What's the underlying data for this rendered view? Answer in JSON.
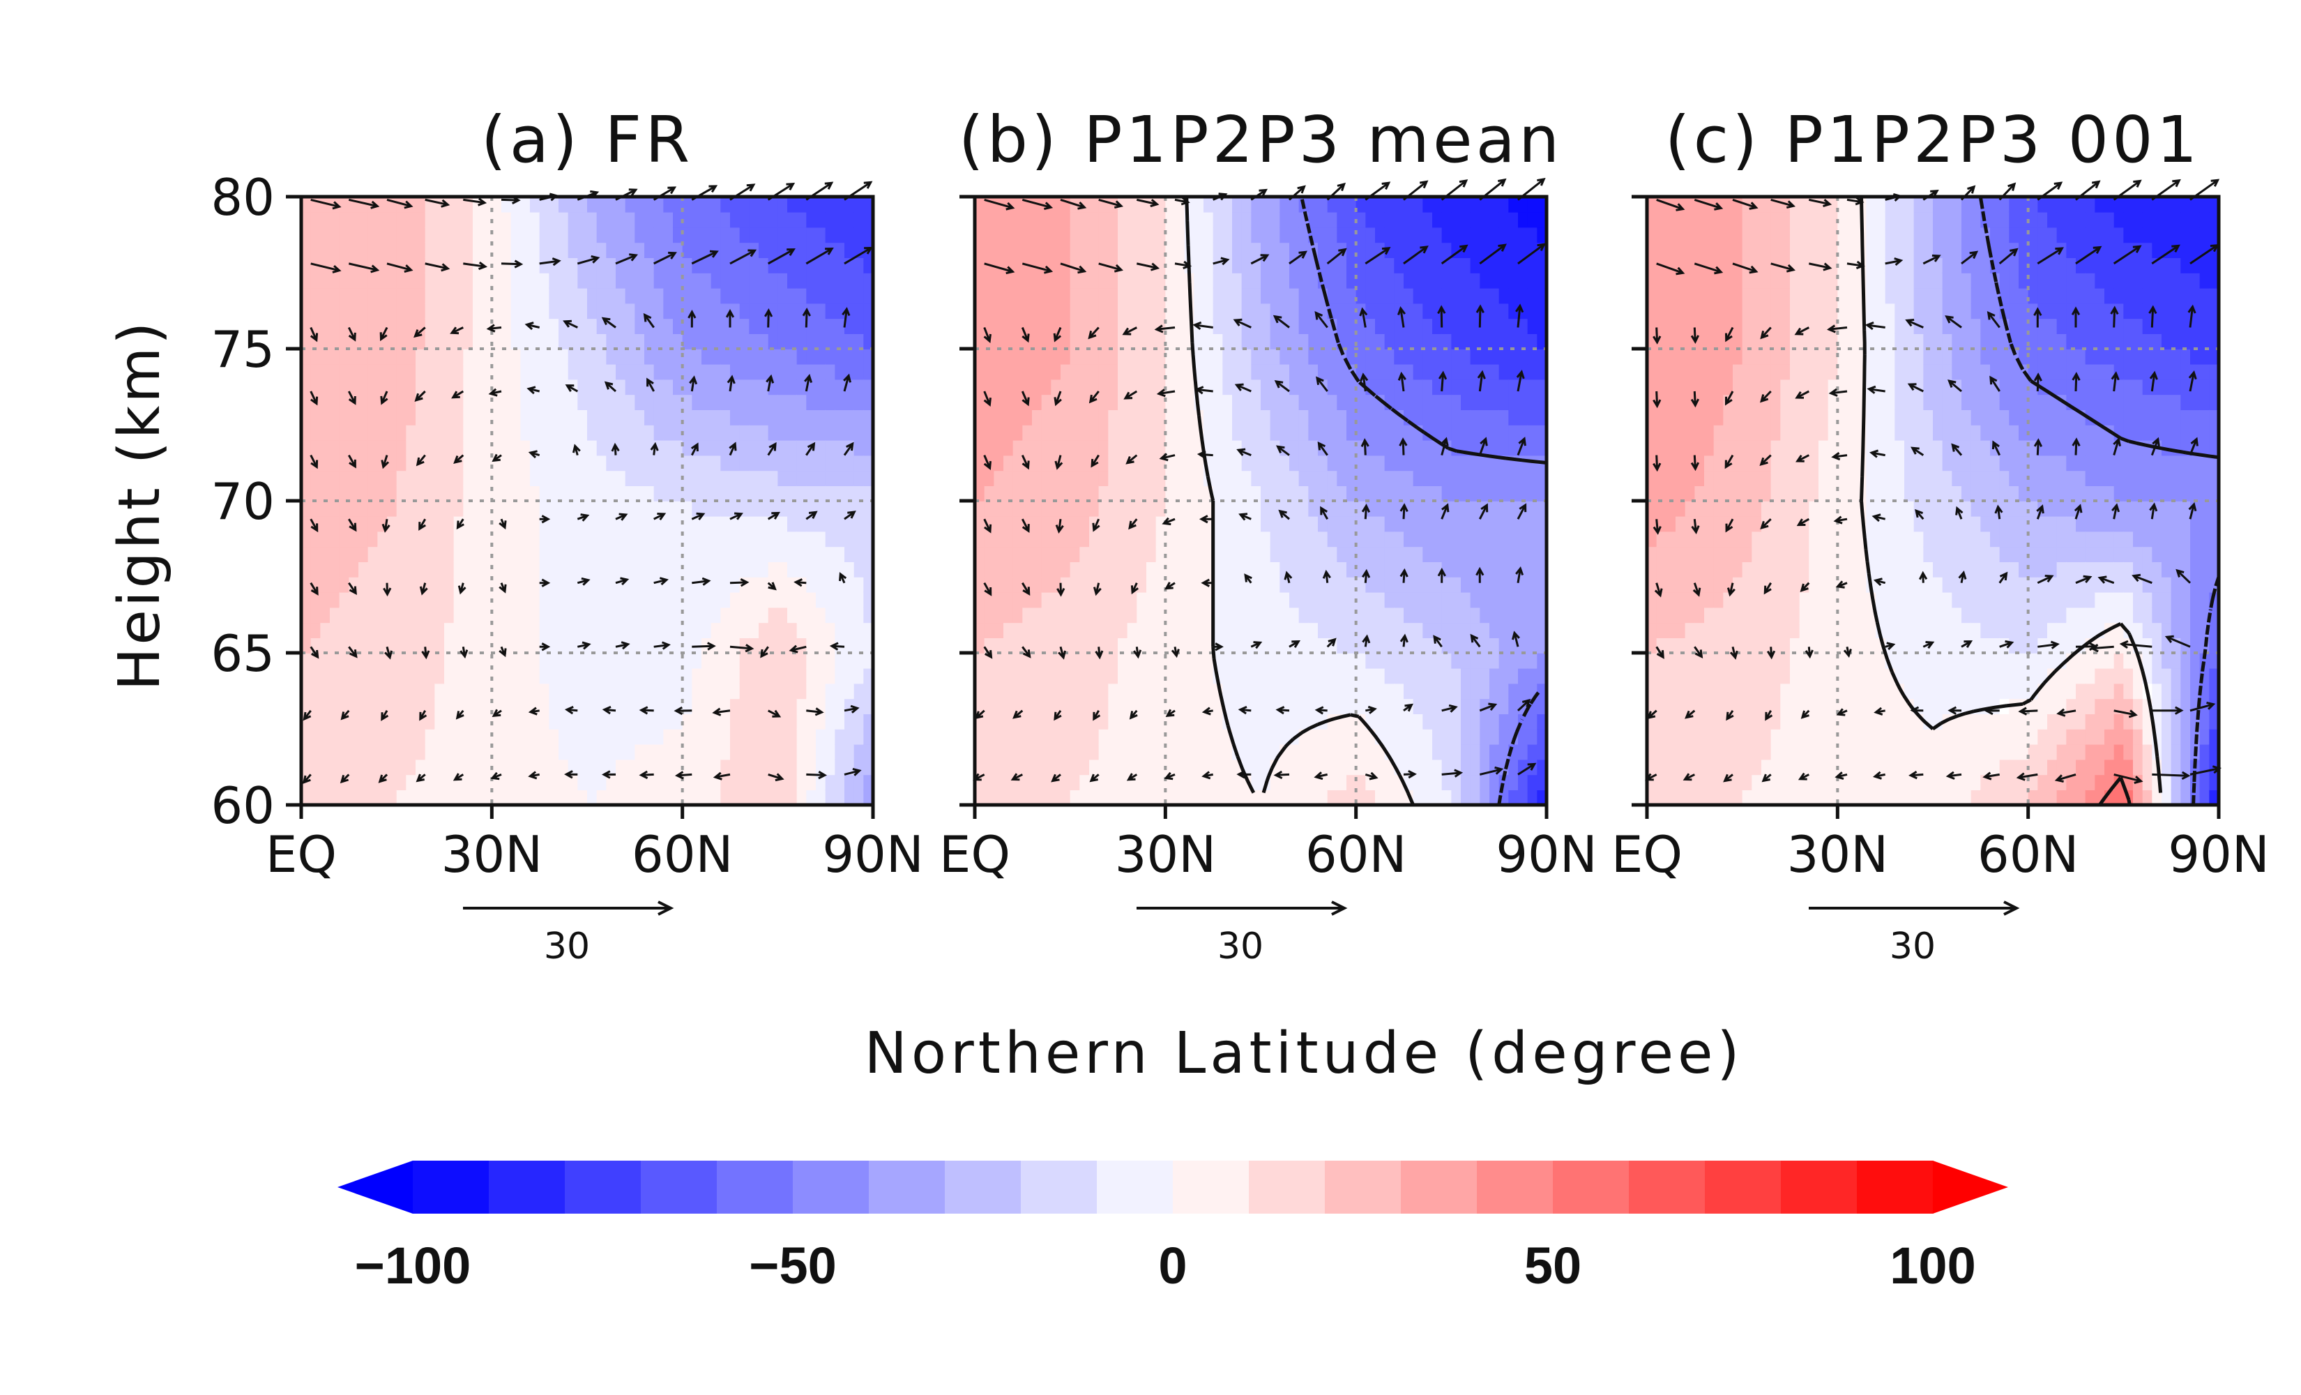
{
  "chart_data": {
    "type": "heatmap",
    "xlabel": "Northern Latitude (degree)",
    "ylabel": "Height (km)",
    "xlim": [
      0,
      90
    ],
    "ylim": [
      60,
      80
    ],
    "x_ticks": [
      {
        "value": 0,
        "label": "EQ"
      },
      {
        "value": 30,
        "label": "30N"
      },
      {
        "value": 60,
        "label": "60N"
      },
      {
        "value": 90,
        "label": "90N"
      }
    ],
    "y_ticks": [
      60,
      65,
      70,
      75,
      80
    ],
    "grid": true,
    "reference_vector": {
      "label": "30"
    },
    "colorbar": {
      "min": -100,
      "max": 100,
      "step": 10,
      "tick_values": [
        -100,
        -50,
        0,
        50,
        100
      ],
      "tick_labels": [
        "−100",
        "−50",
        "0",
        "50",
        "100"
      ],
      "extend": "both",
      "low_color": "#0000ff",
      "high_color": "#ff0000",
      "mid_color": "#ffffff"
    },
    "panels": [
      {
        "title": "(a) FR",
        "field_latitudes": [
          0,
          15,
          30,
          45,
          60,
          75,
          90
        ],
        "field_heights": [
          60,
          65,
          70,
          75,
          80
        ],
        "field_values": [
          [
            15,
            10,
            5,
            0,
            5,
            20,
            -40
          ],
          [
            20,
            15,
            5,
            -5,
            -5,
            20,
            -10
          ],
          [
            25,
            20,
            5,
            -5,
            -10,
            -15,
            -15
          ],
          [
            30,
            25,
            5,
            -15,
            -40,
            -50,
            -60
          ],
          [
            30,
            25,
            5,
            -30,
            -55,
            -70,
            -80
          ]
        ],
        "contours": false
      },
      {
        "title": "(b) P1P2P3 mean",
        "field_latitudes": [
          0,
          15,
          30,
          45,
          60,
          75,
          90
        ],
        "field_heights": [
          60,
          65,
          70,
          75,
          80
        ],
        "field_values": [
          [
            10,
            10,
            5,
            0,
            15,
            -10,
            -90
          ],
          [
            20,
            15,
            5,
            -5,
            -10,
            -20,
            -40
          ],
          [
            30,
            25,
            10,
            -10,
            -30,
            -40,
            -40
          ],
          [
            35,
            30,
            10,
            -25,
            -55,
            -70,
            -80
          ],
          [
            35,
            30,
            10,
            -35,
            -70,
            -85,
            -95
          ]
        ],
        "contours": true
      },
      {
        "title": "(c) P1P2P3 001",
        "field_latitudes": [
          0,
          15,
          30,
          45,
          60,
          75,
          90
        ],
        "field_heights": [
          60,
          65,
          70,
          75,
          80
        ],
        "field_values": [
          [
            10,
            10,
            5,
            5,
            20,
            60,
            -90
          ],
          [
            20,
            15,
            5,
            -5,
            -10,
            10,
            -60
          ],
          [
            35,
            25,
            5,
            -15,
            -30,
            -40,
            -40
          ],
          [
            40,
            30,
            10,
            -25,
            -55,
            -65,
            -75
          ],
          [
            40,
            30,
            10,
            -30,
            -70,
            -85,
            -90
          ]
        ],
        "contours": true
      }
    ]
  }
}
